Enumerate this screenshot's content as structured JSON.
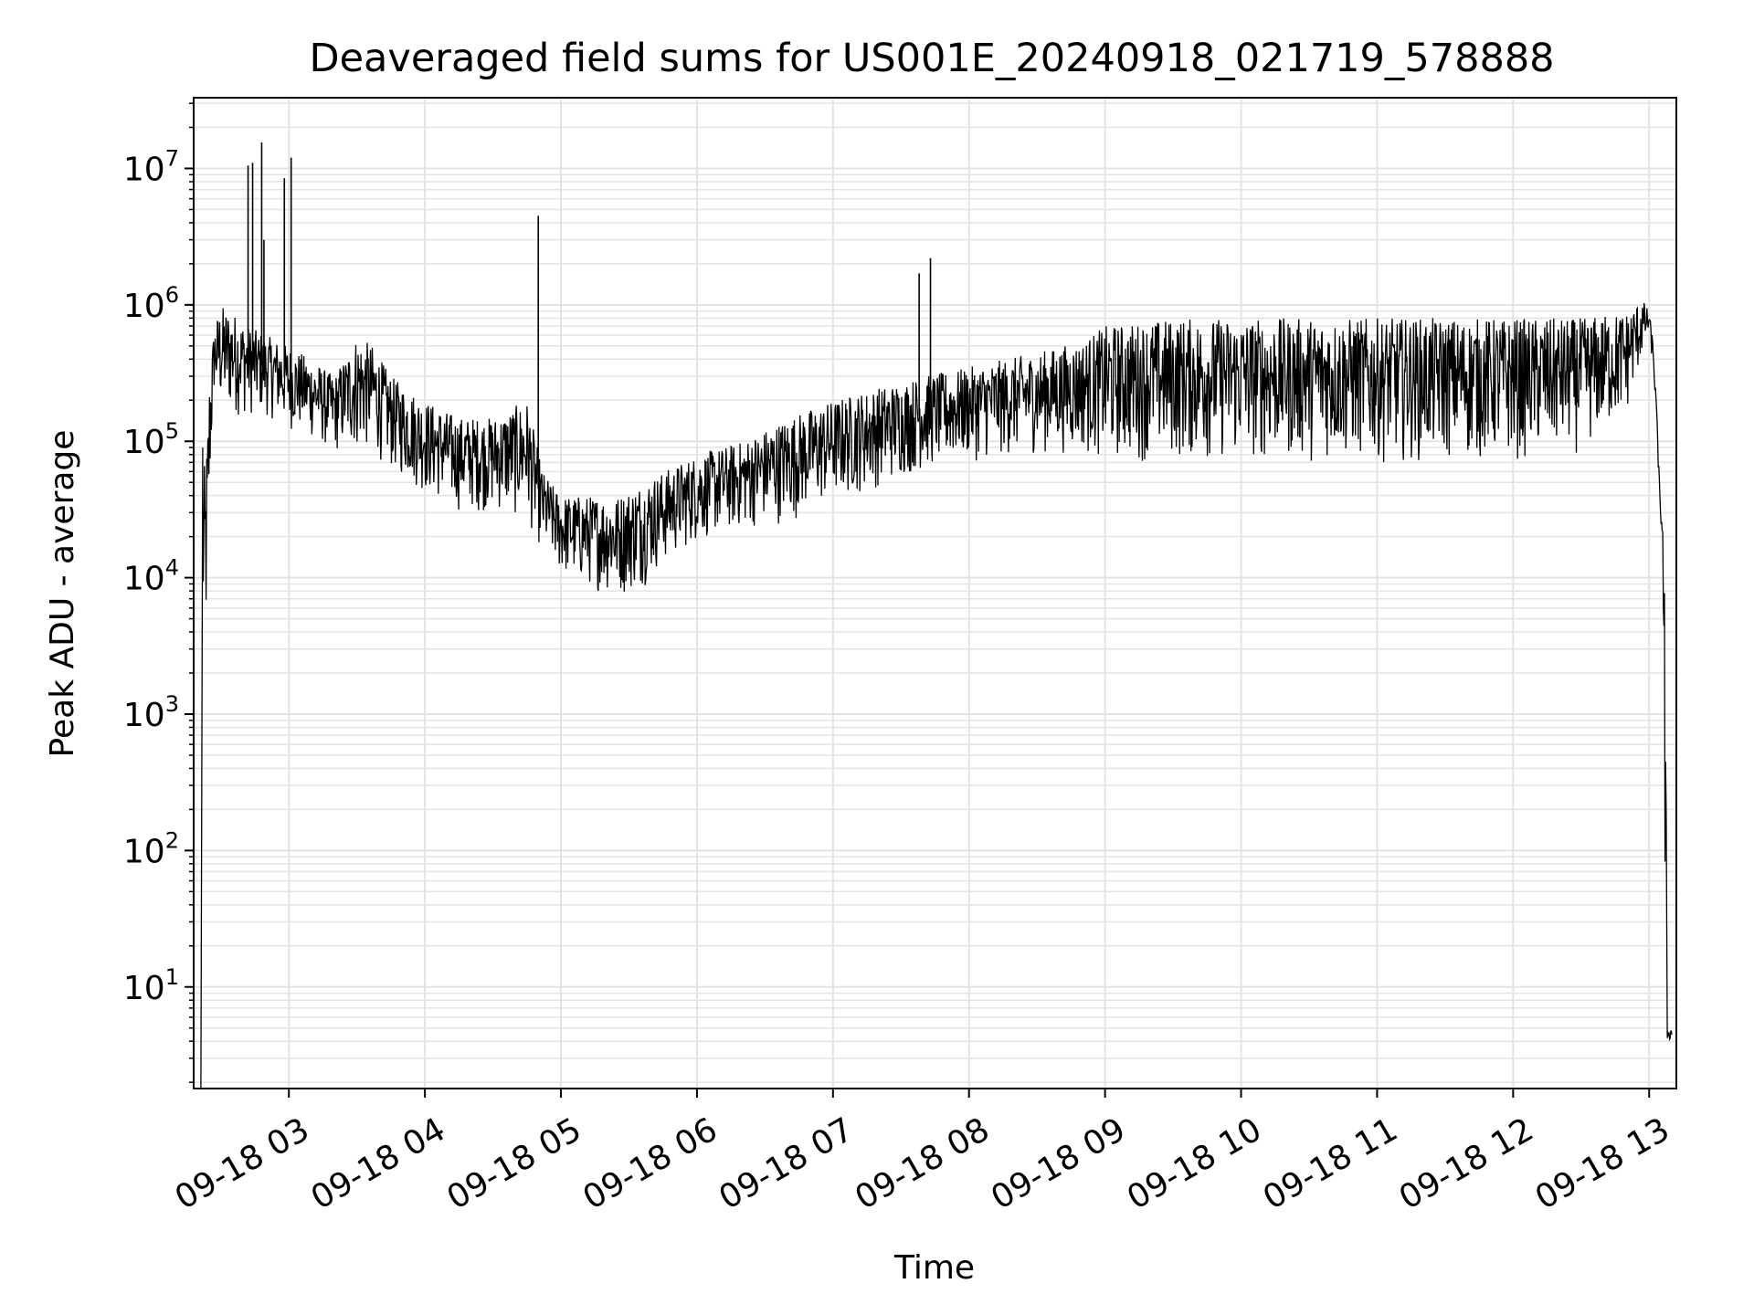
{
  "chart_data": {
    "type": "line",
    "title": "Deaveraged field sums for US001E_20240918_021719_578888",
    "xlabel": "Time",
    "ylabel": "Peak ADU - average",
    "yscale": "log",
    "xlim": [
      "2024-09-18 02:18",
      "2024-09-18 13:12"
    ],
    "ylim": [
      1.8,
      33000000
    ],
    "grid": true,
    "line_color": "#000000",
    "grid_color": "#e3e3e3",
    "x_ticks": [
      {
        "t": "2024-09-18 03:00",
        "label": "09-18 03"
      },
      {
        "t": "2024-09-18 04:00",
        "label": "09-18 04"
      },
      {
        "t": "2024-09-18 05:00",
        "label": "09-18 05"
      },
      {
        "t": "2024-09-18 06:00",
        "label": "09-18 06"
      },
      {
        "t": "2024-09-18 07:00",
        "label": "09-18 07"
      },
      {
        "t": "2024-09-18 08:00",
        "label": "09-18 08"
      },
      {
        "t": "2024-09-18 09:00",
        "label": "09-18 09"
      },
      {
        "t": "2024-09-18 10:00",
        "label": "09-18 10"
      },
      {
        "t": "2024-09-18 11:00",
        "label": "09-18 11"
      },
      {
        "t": "2024-09-18 12:00",
        "label": "09-18 12"
      },
      {
        "t": "2024-09-18 13:00",
        "label": "09-18 13"
      }
    ],
    "y_ticks": [
      {
        "value": 10,
        "base": "10",
        "exp": "1"
      },
      {
        "value": 100,
        "base": "10",
        "exp": "2"
      },
      {
        "value": 1000,
        "base": "10",
        "exp": "3"
      },
      {
        "value": 10000,
        "base": "10",
        "exp": "4"
      },
      {
        "value": 100000,
        "base": "10",
        "exp": "5"
      },
      {
        "value": 1000000,
        "base": "10",
        "exp": "6"
      },
      {
        "value": 10000000,
        "base": "10",
        "exp": "7"
      }
    ],
    "series_envelope": {
      "t": [
        "2024-09-18 02:22",
        "2024-09-18 02:23",
        "2024-09-18 02:24",
        "2024-09-18 02:25",
        "2024-09-18 02:27",
        "2024-09-18 02:30",
        "2024-09-18 02:35",
        "2024-09-18 02:42",
        "2024-09-18 02:50",
        "2024-09-18 03:00",
        "2024-09-18 03:10",
        "2024-09-18 03:20",
        "2024-09-18 03:30",
        "2024-09-18 03:37",
        "2024-09-18 03:45",
        "2024-09-18 04:00",
        "2024-09-18 04:15",
        "2024-09-18 04:30",
        "2024-09-18 04:45",
        "2024-09-18 04:52",
        "2024-09-18 05:00",
        "2024-09-18 05:15",
        "2024-09-18 05:25",
        "2024-09-18 05:35",
        "2024-09-18 05:45",
        "2024-09-18 06:00",
        "2024-09-18 06:20",
        "2024-09-18 06:40",
        "2024-09-18 07:00",
        "2024-09-18 07:20",
        "2024-09-18 07:40",
        "2024-09-18 08:00",
        "2024-09-18 08:30",
        "2024-09-18 08:50",
        "2024-09-18 09:00",
        "2024-09-18 09:30",
        "2024-09-18 10:00",
        "2024-09-18 10:30",
        "2024-09-18 11:00",
        "2024-09-18 11:30",
        "2024-09-18 12:00",
        "2024-09-18 12:30",
        "2024-09-18 12:50",
        "2024-09-18 12:57",
        "2024-09-18 13:00",
        "2024-09-18 13:02",
        "2024-09-18 13:04",
        "2024-09-18 13:05",
        "2024-09-18 13:06",
        "2024-09-18 13:07",
        "2024-09-18 13:08",
        "2024-09-18 13:10"
      ],
      "upper": [
        90000,
        60000,
        120000,
        300000,
        700000,
        1000000,
        900000,
        700000,
        600000,
        500000,
        400000,
        300000,
        600000,
        500000,
        300000,
        200000,
        150000,
        150000,
        200000,
        60000,
        40000,
        40000,
        40000,
        50000,
        60000,
        80000,
        100000,
        150000,
        200000,
        250000,
        300000,
        350000,
        450000,
        550000,
        700000,
        800000,
        800000,
        800000,
        800000,
        800000,
        800000,
        800000,
        900000,
        1100000,
        900000,
        500000,
        100000,
        30000,
        25000,
        10000,
        5,
        5
      ],
      "lower": [
        1700,
        2000,
        3000,
        30000,
        200000,
        150000,
        150000,
        150000,
        150000,
        120000,
        100000,
        80000,
        80000,
        80000,
        60000,
        40000,
        30000,
        30000,
        25000,
        15000,
        10000,
        8000,
        7000,
        8000,
        12000,
        18000,
        22000,
        25000,
        35000,
        45000,
        60000,
        70000,
        80000,
        80000,
        70000,
        70000,
        70000,
        70000,
        70000,
        70000,
        70000,
        80000,
        150000,
        400000,
        600000,
        300000,
        60000,
        25000,
        20000,
        4,
        4,
        4
      ]
    },
    "spikes": [
      {
        "t": "2024-09-18 02:42",
        "value": 10500000
      },
      {
        "t": "2024-09-18 02:44",
        "value": 11000000
      },
      {
        "t": "2024-09-18 02:48",
        "value": 15500000
      },
      {
        "t": "2024-09-18 02:49",
        "value": 3000000
      },
      {
        "t": "2024-09-18 02:58",
        "value": 8500000
      },
      {
        "t": "2024-09-18 03:01",
        "value": 12000000
      },
      {
        "t": "2024-09-18 04:50",
        "value": 4500000
      },
      {
        "t": "2024-09-18 07:38",
        "value": 1700000
      },
      {
        "t": "2024-09-18 07:43",
        "value": 2200000
      }
    ]
  }
}
